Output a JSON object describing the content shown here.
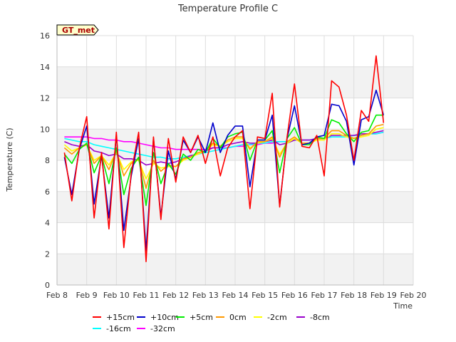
{
  "chart_data": {
    "type": "line",
    "title": "Temperature Profile C",
    "xlabel": "Time",
    "ylabel": "Temperature (C)",
    "badge": "GT_met",
    "xlim": [
      "2024-02-08",
      "2024-02-20"
    ],
    "ylim": [
      0,
      16
    ],
    "x_ticks": [
      "Feb 8",
      "Feb 9",
      "Feb 10",
      "Feb 11",
      "Feb 12",
      "Feb 13",
      "Feb 14",
      "Feb 15",
      "Feb 16",
      "Feb 17",
      "Feb 18",
      "Feb 19",
      "Feb 20"
    ],
    "y_ticks": [
      0,
      2,
      4,
      6,
      8,
      10,
      12,
      14,
      16
    ],
    "grid": true,
    "legend_position": "bottom",
    "x": [
      "2024-02-08 06:00",
      "2024-02-08 12:00",
      "2024-02-08 18:00",
      "2024-02-09 00:00",
      "2024-02-09 06:00",
      "2024-02-09 12:00",
      "2024-02-09 18:00",
      "2024-02-10 00:00",
      "2024-02-10 06:00",
      "2024-02-10 12:00",
      "2024-02-10 18:00",
      "2024-02-11 00:00",
      "2024-02-11 06:00",
      "2024-02-11 12:00",
      "2024-02-11 18:00",
      "2024-02-12 00:00",
      "2024-02-12 06:00",
      "2024-02-12 12:00",
      "2024-02-12 18:00",
      "2024-02-13 00:00",
      "2024-02-13 06:00",
      "2024-02-13 12:00",
      "2024-02-13 18:00",
      "2024-02-14 00:00",
      "2024-02-14 06:00",
      "2024-02-14 12:00",
      "2024-02-14 18:00",
      "2024-02-15 00:00",
      "2024-02-15 06:00",
      "2024-02-15 12:00",
      "2024-02-15 18:00",
      "2024-02-16 00:00",
      "2024-02-16 06:00",
      "2024-02-16 12:00",
      "2024-02-16 18:00",
      "2024-02-17 00:00",
      "2024-02-17 06:00",
      "2024-02-17 12:00",
      "2024-02-17 18:00",
      "2024-02-18 00:00",
      "2024-02-18 06:00",
      "2024-02-18 12:00",
      "2024-02-18 18:00",
      "2024-02-19 00:00"
    ],
    "series": [
      {
        "name": "+15cm",
        "color": "#ff0000",
        "values": [
          8.5,
          5.4,
          8.8,
          10.8,
          4.3,
          8.5,
          3.6,
          9.8,
          2.4,
          7.2,
          9.8,
          1.5,
          9.5,
          4.2,
          9.4,
          6.6,
          9.5,
          8.5,
          9.6,
          7.8,
          9.5,
          7.0,
          8.8,
          9.5,
          9.9,
          4.9,
          9.5,
          9.4,
          12.3,
          5.0,
          9.5,
          12.9,
          8.9,
          8.8,
          9.6,
          7.0,
          13.1,
          12.7,
          10.9,
          8.0,
          11.2,
          10.5,
          14.7,
          10.4
        ]
      },
      {
        "name": "+10cm",
        "color": "#0000cc",
        "values": [
          8.2,
          5.8,
          8.7,
          10.2,
          5.2,
          8.3,
          4.3,
          9.6,
          3.5,
          7.0,
          9.4,
          2.2,
          9.4,
          4.4,
          8.6,
          6.8,
          9.3,
          8.5,
          9.5,
          8.5,
          10.4,
          8.5,
          9.6,
          10.2,
          10.2,
          6.3,
          9.3,
          9.3,
          10.9,
          5.1,
          9.4,
          11.5,
          9.0,
          9.1,
          9.5,
          9.6,
          11.6,
          11.5,
          10.5,
          7.7,
          10.6,
          10.8,
          12.5,
          10.9
        ]
      },
      {
        "name": "+5cm",
        "color": "#00ee00",
        "values": [
          8.4,
          7.8,
          8.7,
          9.1,
          7.2,
          8.3,
          6.5,
          8.8,
          5.8,
          7.5,
          8.2,
          5.1,
          8.5,
          6.5,
          7.8,
          7.1,
          8.4,
          8.0,
          8.7,
          8.5,
          9.4,
          8.8,
          9.5,
          9.7,
          9.8,
          8.0,
          9.3,
          9.3,
          9.9,
          7.2,
          9.4,
          10.1,
          9.0,
          9.0,
          9.5,
          9.4,
          10.6,
          10.4,
          9.7,
          9.2,
          9.8,
          9.9,
          10.9,
          10.9
        ]
      },
      {
        "name": "0cm",
        "color": "#ff9900",
        "values": [
          8.8,
          8.4,
          8.8,
          9.0,
          7.8,
          8.3,
          7.4,
          8.6,
          7.0,
          7.8,
          8.1,
          6.2,
          8.0,
          7.3,
          7.7,
          7.6,
          8.1,
          8.2,
          8.5,
          8.6,
          9.1,
          8.9,
          9.3,
          9.5,
          9.5,
          8.7,
          9.2,
          9.2,
          9.5,
          8.2,
          9.2,
          9.5,
          9.1,
          9.1,
          9.4,
          9.4,
          9.9,
          9.9,
          9.6,
          9.4,
          9.6,
          9.7,
          10.2,
          10.3
        ]
      },
      {
        "name": "-2cm",
        "color": "#ffff00",
        "values": [
          9.0,
          8.6,
          8.8,
          9.0,
          8.0,
          8.3,
          7.7,
          8.5,
          7.4,
          7.9,
          8.0,
          6.8,
          7.8,
          7.5,
          7.6,
          7.6,
          8.0,
          8.2,
          8.4,
          8.6,
          9.0,
          8.9,
          9.2,
          9.4,
          9.4,
          8.8,
          9.1,
          9.2,
          9.4,
          8.4,
          9.1,
          9.4,
          9.1,
          9.1,
          9.3,
          9.3,
          9.7,
          9.7,
          9.5,
          9.4,
          9.5,
          9.6,
          10.0,
          10.1
        ]
      },
      {
        "name": "-8cm",
        "color": "#9900cc",
        "values": [
          9.2,
          9.0,
          8.9,
          9.0,
          8.6,
          8.5,
          8.3,
          8.4,
          8.1,
          8.1,
          8.0,
          7.7,
          7.8,
          7.9,
          7.8,
          7.9,
          8.1,
          8.3,
          8.4,
          8.6,
          8.8,
          8.8,
          9.0,
          9.1,
          9.2,
          9.1,
          9.1,
          9.2,
          9.3,
          9.0,
          9.1,
          9.3,
          9.3,
          9.3,
          9.4,
          9.4,
          9.6,
          9.6,
          9.6,
          9.6,
          9.7,
          9.7,
          9.8,
          9.9
        ]
      },
      {
        "name": "-16cm",
        "color": "#00ffff",
        "values": [
          9.4,
          9.3,
          9.2,
          9.2,
          9.0,
          8.9,
          8.8,
          8.7,
          8.6,
          8.5,
          8.4,
          8.3,
          8.2,
          8.2,
          8.1,
          8.1,
          8.2,
          8.3,
          8.4,
          8.5,
          8.6,
          8.7,
          8.8,
          8.9,
          9.0,
          9.0,
          9.1,
          9.1,
          9.2,
          9.2,
          9.2,
          9.3,
          9.3,
          9.3,
          9.4,
          9.4,
          9.5,
          9.5,
          9.5,
          9.6,
          9.6,
          9.7,
          9.7,
          9.8
        ]
      },
      {
        "name": "-32cm",
        "color": "#ff00ff",
        "values": [
          9.5,
          9.5,
          9.5,
          9.5,
          9.4,
          9.4,
          9.3,
          9.3,
          9.2,
          9.2,
          9.1,
          9.0,
          8.9,
          8.8,
          8.8,
          8.7,
          8.7,
          8.7,
          8.7,
          8.7,
          8.8,
          8.8,
          8.8,
          8.9,
          8.9,
          9.0,
          9.0,
          9.1,
          9.1,
          9.2,
          9.2,
          9.3,
          9.3,
          9.3,
          9.4,
          9.4,
          9.5,
          9.5,
          9.5,
          9.6,
          9.6,
          9.7,
          9.7,
          9.8
        ]
      }
    ]
  }
}
